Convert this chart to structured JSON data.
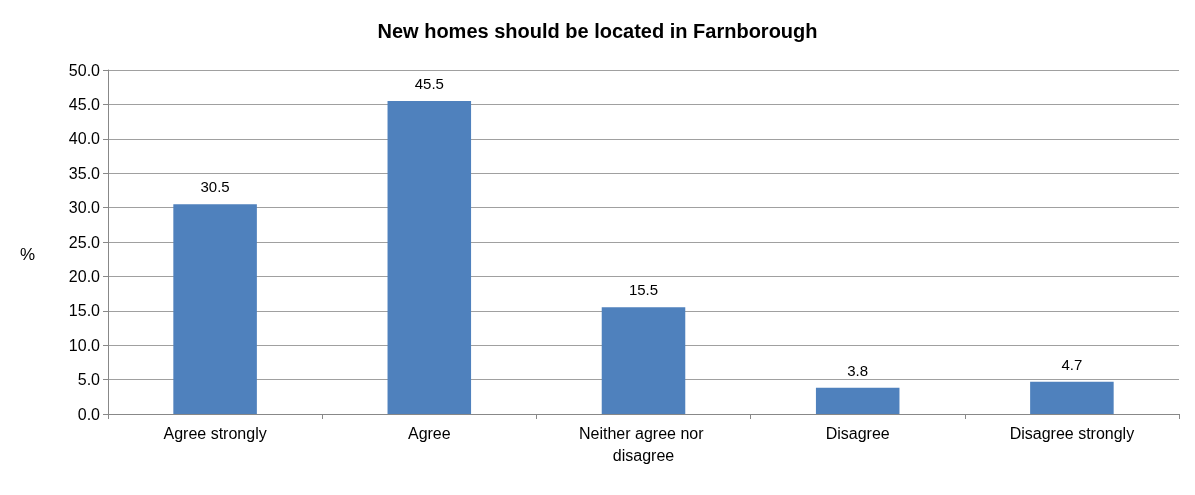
{
  "chart_data": {
    "type": "bar",
    "title": "New homes should be located in Farnborough",
    "ylabel": "%",
    "categories": [
      "Agree strongly",
      "Agree",
      "Neither agree nor disagree",
      "Disagree",
      "Disagree strongly"
    ],
    "values": [
      30.5,
      45.5,
      15.5,
      3.8,
      4.7
    ],
    "color": "#4f81bd",
    "ylim": [
      0,
      50
    ],
    "yticks": [
      {
        "value": 0,
        "label": "0.0"
      },
      {
        "value": 5,
        "label": "5.0"
      },
      {
        "value": 10,
        "label": "10.0"
      },
      {
        "value": 15,
        "label": "15.0"
      },
      {
        "value": 20,
        "label": "20.0"
      },
      {
        "value": 25,
        "label": "25.0"
      },
      {
        "value": 30,
        "label": "30.0"
      },
      {
        "value": 35,
        "label": "35.0"
      },
      {
        "value": 40,
        "label": "40.0"
      },
      {
        "value": 45,
        "label": "45.0"
      },
      {
        "value": 50,
        "label": "50.0"
      }
    ],
    "grid": "y",
    "data_labels": true
  }
}
